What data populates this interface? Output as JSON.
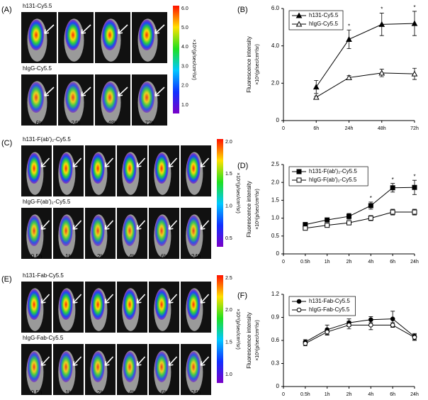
{
  "image_panels": [
    {
      "label": "(A)",
      "rows": [
        "h131-Cy5.5",
        "hIgG-Cy5.5"
      ],
      "times": [
        "6h",
        "24h",
        "48h",
        "72h"
      ],
      "colorbar": {
        "ticks": [
          "6.0",
          "5.0",
          "4.0",
          "3.0",
          "2.0",
          "1.0"
        ],
        "label": "×10⁸(p/sec/cm²/sr)"
      }
    },
    {
      "label": "(C)",
      "rows": [
        "h131-F(ab')₂-Cy5.5",
        "hIgG-F(ab')₂-Cy5.5"
      ],
      "times": [
        "0.5h",
        "1h",
        "2h",
        "4h",
        "6h",
        "24h"
      ],
      "colorbar": {
        "ticks": [
          "2.0",
          "1.5",
          "1.0",
          "0.5"
        ],
        "label": "×10⁸(p/sec/cm²/sr)"
      }
    },
    {
      "label": "(E)",
      "rows": [
        "h131-Fab-Cy5.5",
        "hIgG-Fab-Cy5.5"
      ],
      "times": [
        "0.5h",
        "1h",
        "2h",
        "4h",
        "6h",
        "24h"
      ],
      "colorbar": {
        "ticks": [
          "2.5",
          "2.0",
          "1.5",
          "1.0"
        ],
        "label": "×10⁸(p/sec/cm²/sr)"
      }
    }
  ],
  "chart_data": [
    {
      "type": "line",
      "panel_label": "(B)",
      "ylabel": [
        "Fluorescence intensity",
        "×10⁸(p/sec/cm²/sr)"
      ],
      "categories": [
        "0",
        "6h",
        "24h",
        "48h",
        "72h"
      ],
      "ylim": [
        0,
        6
      ],
      "yticks": [
        0,
        {
          "value": 2,
          "label": "2.0"
        },
        {
          "value": 4,
          "label": "4.0"
        },
        {
          "value": 6,
          "label": "6.0"
        }
      ],
      "series": [
        {
          "name": "h131-Cy5.5",
          "color": "#000000",
          "marker": "triangle",
          "fill": "#000000",
          "values": [
            null,
            1.8,
            4.35,
            5.15,
            5.2
          ],
          "errors": [
            null,
            0.35,
            0.5,
            0.6,
            0.65
          ],
          "annotations": [
            null,
            null,
            "*",
            "*",
            "*"
          ]
        },
        {
          "name": "hIgG-Cy5.5",
          "color": "#000000",
          "marker": "triangle",
          "fill": "#ffffff",
          "values": [
            null,
            1.25,
            2.3,
            2.55,
            2.5
          ],
          "errors": [
            null,
            0.05,
            0.1,
            0.2,
            0.3
          ]
        }
      ]
    },
    {
      "type": "line",
      "panel_label": "(D)",
      "ylabel": [
        "Fluorescence intensity",
        "×10⁸(p/sec/cm²/sr)"
      ],
      "categories": [
        "0",
        "0.5h",
        "1h",
        "2h",
        "4h",
        "6h",
        "24h"
      ],
      "ylim": [
        0,
        2.5
      ],
      "yticks": [
        0,
        0.5,
        {
          "value": 1,
          "label": "1.0"
        },
        1.5,
        {
          "value": 2,
          "label": "2.0"
        },
        2.5
      ],
      "series": [
        {
          "name": "h131-F(ab')₂-Cy5.5",
          "color": "#000000",
          "marker": "square",
          "fill": "#000000",
          "values": [
            null,
            0.82,
            0.95,
            1.05,
            1.35,
            1.85,
            1.86
          ],
          "errors": [
            null,
            0.06,
            0.05,
            0.08,
            0.1,
            0.12,
            0.2
          ],
          "annotations": [
            null,
            null,
            null,
            null,
            "*",
            "*",
            "*"
          ]
        },
        {
          "name": "hIgG-F(ab')₂-Cy5.5",
          "color": "#000000",
          "marker": "square",
          "fill": "#ffffff",
          "values": [
            null,
            0.72,
            0.8,
            0.87,
            1.0,
            1.17,
            1.17
          ],
          "errors": [
            null,
            0.05,
            0.05,
            0.05,
            0.07,
            0.08,
            0.08
          ]
        }
      ]
    },
    {
      "type": "line",
      "panel_label": "(F)",
      "ylabel": [
        "Fluorescence intensity",
        "×10⁸(p/sec/cm²/sr)"
      ],
      "categories": [
        "0",
        "0.5h",
        "1h",
        "2h",
        "4h",
        "6h",
        "24h"
      ],
      "ylim": [
        0,
        1.2
      ],
      "yticks": [
        0,
        0.3,
        0.6,
        0.9,
        1.2
      ],
      "series": [
        {
          "name": "h131-Fab-Cy5.5",
          "color": "#000000",
          "marker": "circle",
          "fill": "#000000",
          "values": [
            null,
            0.58,
            0.74,
            0.83,
            0.87,
            0.88,
            0.65
          ],
          "errors": [
            null,
            0.03,
            0.06,
            0.05,
            0.04,
            0.1,
            0.04
          ]
        },
        {
          "name": "hIgG-Fab-Cy5.5",
          "color": "#000000",
          "marker": "circle",
          "fill": "#ffffff",
          "values": [
            null,
            0.56,
            0.71,
            0.8,
            0.8,
            0.8,
            0.64
          ],
          "errors": [
            null,
            0.03,
            0.04,
            0.05,
            0.06,
            0.03,
            0.04
          ]
        }
      ]
    }
  ]
}
